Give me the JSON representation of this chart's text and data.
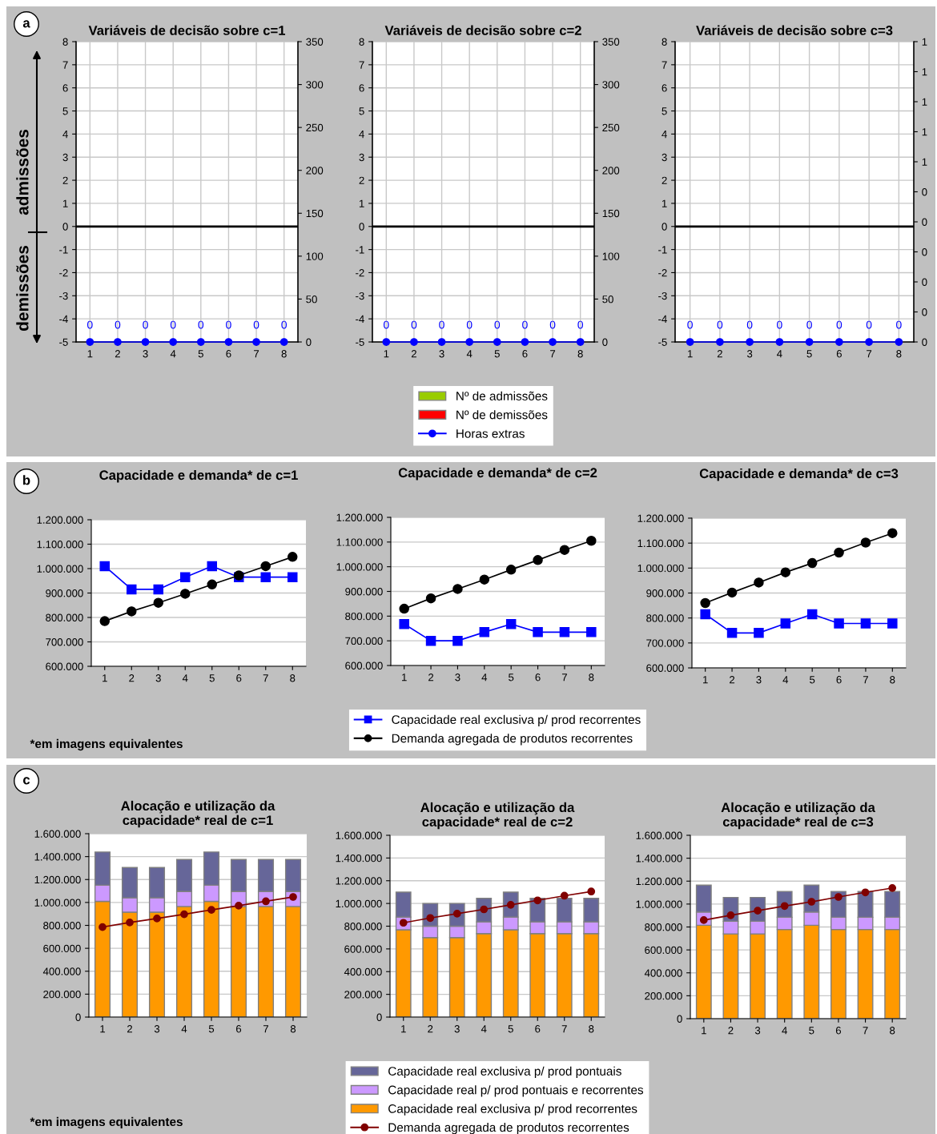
{
  "chart_data": [
    {
      "type": "bar",
      "title": "Variáveis de decisão sobre c=1",
      "categories": [
        "1",
        "2",
        "3",
        "4",
        "5",
        "6",
        "7",
        "8"
      ],
      "grid": true,
      "ylim": [
        -5,
        8
      ],
      "yticks": [
        -5,
        -4,
        -3,
        -2,
        -1,
        0,
        1,
        2,
        3,
        4,
        5,
        6,
        7,
        8
      ],
      "y2lim": [
        0,
        350
      ],
      "y2ticks": [
        0,
        50,
        100,
        150,
        200,
        250,
        300,
        350
      ],
      "ref_lines": [
        {
          "axis": "y",
          "value": 0,
          "color": "#000000"
        }
      ],
      "annotations": [
        "a",
        "admissões",
        "demissões"
      ],
      "series": [
        {
          "type": "bar",
          "color": "#99cc00",
          "values": [
            0,
            0,
            0,
            0,
            0,
            0,
            0,
            0
          ]
        },
        {
          "type": "bar",
          "color": "#ff0000",
          "values": [
            0,
            0,
            0,
            0,
            0,
            0,
            0,
            0
          ]
        },
        {
          "type": "line",
          "axis": "y2",
          "color": "#0000ff",
          "marker": "circle",
          "values": [
            0,
            0,
            0,
            0,
            0,
            0,
            0,
            0
          ],
          "value_labels": [
            "0",
            "0",
            "0",
            "0",
            "0",
            "0",
            "0",
            "0"
          ]
        }
      ]
    },
    {
      "type": "bar",
      "title": "Variáveis de decisão sobre c=2",
      "categories": [
        "1",
        "2",
        "3",
        "4",
        "5",
        "6",
        "7",
        "8"
      ],
      "grid": true,
      "legend": "bottom",
      "ylim": [
        -5,
        8
      ],
      "yticks": [
        -5,
        -4,
        -3,
        -2,
        -1,
        0,
        1,
        2,
        3,
        4,
        5,
        6,
        7,
        8
      ],
      "y2lim": [
        0,
        350
      ],
      "y2ticks": [
        0,
        50,
        100,
        150,
        200,
        250,
        300,
        350
      ],
      "ref_lines": [
        {
          "axis": "y",
          "value": 0,
          "color": "#000000"
        }
      ],
      "series": [
        {
          "type": "bar",
          "name": "Nº de admissões",
          "color": "#99cc00",
          "values": [
            0,
            0,
            0,
            0,
            0,
            0,
            0,
            0
          ]
        },
        {
          "type": "bar",
          "name": "Nº de demissões",
          "color": "#ff0000",
          "values": [
            0,
            0,
            0,
            0,
            0,
            0,
            0,
            0
          ]
        },
        {
          "type": "line",
          "axis": "y2",
          "name": "Horas extras",
          "color": "#0000ff",
          "marker": "circle",
          "values": [
            0,
            0,
            0,
            0,
            0,
            0,
            0,
            0
          ],
          "value_labels": [
            "0",
            "0",
            "0",
            "0",
            "0",
            "0",
            "0",
            "0"
          ]
        }
      ]
    },
    {
      "type": "bar",
      "title": "Variáveis de decisão sobre c=3",
      "categories": [
        "1",
        "2",
        "3",
        "4",
        "5",
        "6",
        "7",
        "8"
      ],
      "grid": true,
      "ylim": [
        -5,
        8
      ],
      "yticks": [
        -5,
        -4,
        -3,
        -2,
        -1,
        0,
        1,
        2,
        3,
        4,
        5,
        6,
        7,
        8
      ],
      "y2lim": [
        0,
        1
      ],
      "y2ticks": [
        0,
        {
          "value": 0.1,
          "label": "0"
        },
        {
          "value": 0.2,
          "label": "0"
        },
        {
          "value": 0.3,
          "label": "0"
        },
        {
          "value": 0.4,
          "label": "0"
        },
        {
          "value": 0.5,
          "label": "0"
        },
        {
          "value": 0.6,
          "label": "1"
        },
        {
          "value": 0.7,
          "label": "1"
        },
        {
          "value": 0.8,
          "label": "1"
        },
        {
          "value": 0.9,
          "label": "1"
        },
        1
      ],
      "ref_lines": [
        {
          "axis": "y",
          "value": 0,
          "color": "#000000"
        }
      ],
      "series": [
        {
          "type": "bar",
          "color": "#99cc00",
          "values": [
            0,
            0,
            0,
            0,
            0,
            0,
            0,
            0
          ]
        },
        {
          "type": "bar",
          "color": "#ff0000",
          "values": [
            0,
            0,
            0,
            0,
            0,
            0,
            0,
            0
          ]
        },
        {
          "type": "line",
          "axis": "y2",
          "color": "#0000ff",
          "marker": "circle",
          "values": [
            0,
            0,
            0,
            0,
            0,
            0,
            0,
            0
          ],
          "value_labels": [
            "0",
            "0",
            "0",
            "0",
            "0",
            "0",
            "0",
            "0"
          ]
        }
      ]
    },
    {
      "type": "line",
      "title": "Capacidade e demanda* de c=1",
      "categories": [
        "1",
        "2",
        "3",
        "4",
        "5",
        "6",
        "7",
        "8"
      ],
      "grid": "y",
      "ylim": [
        600000,
        1200000
      ],
      "yticks": [
        {
          "value": 600000,
          "label": "600.000"
        },
        {
          "value": 700000,
          "label": "700.000"
        },
        {
          "value": 800000,
          "label": "800.000"
        },
        {
          "value": 900000,
          "label": "900.000"
        },
        {
          "value": 1000000,
          "label": "1.000.000"
        },
        {
          "value": 1100000,
          "label": "1.100.000"
        },
        {
          "value": 1200000,
          "label": "1.200.000"
        }
      ],
      "annotations": [
        "b",
        "*em imagens equivalentes"
      ],
      "series": [
        {
          "color": "#0000ff",
          "marker": "square",
          "values": [
            1010000,
            915000,
            915000,
            965000,
            1010000,
            965000,
            965000,
            965000
          ]
        },
        {
          "color": "#000000",
          "marker": "circle",
          "values": [
            785000,
            825000,
            860000,
            897000,
            935000,
            972000,
            1010000,
            1048000
          ]
        }
      ]
    },
    {
      "type": "line",
      "title": "Capacidade e demanda* de c=2",
      "categories": [
        "1",
        "2",
        "3",
        "4",
        "5",
        "6",
        "7",
        "8"
      ],
      "grid": "y",
      "legend": "bottom",
      "ylim": [
        600000,
        1200000
      ],
      "yticks": [
        {
          "value": 600000,
          "label": "600.000"
        },
        {
          "value": 700000,
          "label": "700.000"
        },
        {
          "value": 800000,
          "label": "800.000"
        },
        {
          "value": 900000,
          "label": "900.000"
        },
        {
          "value": 1000000,
          "label": "1.000.000"
        },
        {
          "value": 1100000,
          "label": "1.100.000"
        },
        {
          "value": 1200000,
          "label": "1.200.000"
        }
      ],
      "series": [
        {
          "name": "Capacidade real exclusiva p/ prod recorrentes",
          "color": "#0000ff",
          "marker": "square",
          "values": [
            768000,
            700000,
            700000,
            735000,
            768000,
            735000,
            735000,
            735000
          ]
        },
        {
          "name": "Demanda agregada de produtos recorrentes",
          "color": "#000000",
          "marker": "circle",
          "values": [
            830000,
            872000,
            910000,
            948000,
            988000,
            1027000,
            1068000,
            1105000
          ]
        }
      ]
    },
    {
      "type": "line",
      "title": "Capacidade e demanda* de c=3",
      "categories": [
        "1",
        "2",
        "3",
        "4",
        "5",
        "6",
        "7",
        "8"
      ],
      "grid": "y",
      "ylim": [
        600000,
        1200000
      ],
      "yticks": [
        {
          "value": 600000,
          "label": "600.000"
        },
        {
          "value": 700000,
          "label": "700.000"
        },
        {
          "value": 800000,
          "label": "800.000"
        },
        {
          "value": 900000,
          "label": "900.000"
        },
        {
          "value": 1000000,
          "label": "1.000.000"
        },
        {
          "value": 1100000,
          "label": "1.100.000"
        },
        {
          "value": 1200000,
          "label": "1.200.000"
        }
      ],
      "series": [
        {
          "color": "#0000ff",
          "marker": "square",
          "values": [
            815000,
            740000,
            740000,
            778000,
            815000,
            778000,
            778000,
            778000
          ]
        },
        {
          "color": "#000000",
          "marker": "circle",
          "values": [
            860000,
            902000,
            942000,
            983000,
            1020000,
            1062000,
            1102000,
            1140000
          ]
        }
      ]
    },
    {
      "type": "bar",
      "stacked": true,
      "title": "Alocação e utilização da\ncapacidade* real de c=1",
      "categories": [
        "1",
        "2",
        "3",
        "4",
        "5",
        "6",
        "7",
        "8"
      ],
      "grid": "y",
      "ylim": [
        0,
        1600000
      ],
      "yticks": [
        0,
        {
          "value": 200000,
          "label": "200.000"
        },
        {
          "value": 400000,
          "label": "400.000"
        },
        {
          "value": 600000,
          "label": "600.000"
        },
        {
          "value": 800000,
          "label": "800.000"
        },
        {
          "value": 1000000,
          "label": "1.000.000"
        },
        {
          "value": 1200000,
          "label": "1.200.000"
        },
        {
          "value": 1400000,
          "label": "1.400.000"
        },
        {
          "value": 1600000,
          "label": "1.600.000"
        }
      ],
      "annotations": [
        "c",
        "*em imagens equivalentes"
      ],
      "series": [
        {
          "color": "#ff9900",
          "values": [
            1010000,
            915000,
            915000,
            965000,
            1010000,
            965000,
            965000,
            965000
          ]
        },
        {
          "color": "#cc99ff",
          "values": [
            140000,
            125000,
            125000,
            130000,
            140000,
            130000,
            130000,
            130000
          ]
        },
        {
          "color": "#666699",
          "values": [
            290000,
            265000,
            265000,
            280000,
            290000,
            280000,
            280000,
            280000
          ]
        },
        {
          "type": "line",
          "color": "#800000",
          "marker": "circle",
          "values": [
            785000,
            825000,
            860000,
            897000,
            935000,
            972000,
            1010000,
            1048000
          ]
        }
      ]
    },
    {
      "type": "bar",
      "stacked": true,
      "title": "Alocação e utilização da\ncapacidade* real de c=2",
      "categories": [
        "1",
        "2",
        "3",
        "4",
        "5",
        "6",
        "7",
        "8"
      ],
      "grid": "y",
      "legend": "bottom",
      "ylim": [
        0,
        1600000
      ],
      "yticks": [
        0,
        {
          "value": 200000,
          "label": "200.000"
        },
        {
          "value": 400000,
          "label": "400.000"
        },
        {
          "value": 600000,
          "label": "600.000"
        },
        {
          "value": 800000,
          "label": "800.000"
        },
        {
          "value": 1000000,
          "label": "1.000.000"
        },
        {
          "value": 1200000,
          "label": "1.200.000"
        },
        {
          "value": 1400000,
          "label": "1.400.000"
        },
        {
          "value": 1600000,
          "label": "1.600.000"
        }
      ],
      "series": [
        {
          "name": "Capacidade real exclusiva p/ prod recorrentes",
          "color": "#ff9900",
          "values": [
            768000,
            700000,
            700000,
            735000,
            768000,
            735000,
            735000,
            735000
          ]
        },
        {
          "name": "Capacidade real p/ prod pontuais e recorrentes",
          "color": "#cc99ff",
          "values": [
            112000,
            100000,
            100000,
            103000,
            112000,
            103000,
            103000,
            103000
          ]
        },
        {
          "name": "Capacidade real exclusiva p/ prod pontuais",
          "color": "#666699",
          "values": [
            220000,
            200000,
            200000,
            207000,
            220000,
            207000,
            207000,
            207000
          ]
        },
        {
          "type": "line",
          "name": "Demanda agregada de produtos recorrentes",
          "color": "#800000",
          "marker": "circle",
          "values": [
            830000,
            872000,
            910000,
            948000,
            988000,
            1027000,
            1068000,
            1105000
          ]
        }
      ]
    },
    {
      "type": "bar",
      "stacked": true,
      "title": "Alocação e utilização da\ncapacidade* real de c=3",
      "categories": [
        "1",
        "2",
        "3",
        "4",
        "5",
        "6",
        "7",
        "8"
      ],
      "grid": "y",
      "ylim": [
        0,
        1600000
      ],
      "yticks": [
        0,
        {
          "value": 200000,
          "label": "200.000"
        },
        {
          "value": 400000,
          "label": "400.000"
        },
        {
          "value": 600000,
          "label": "600.000"
        },
        {
          "value": 800000,
          "label": "800.000"
        },
        {
          "value": 1000000,
          "label": "1.000.000"
        },
        {
          "value": 1200000,
          "label": "1.200.000"
        },
        {
          "value": 1400000,
          "label": "1.400.000"
        },
        {
          "value": 1600000,
          "label": "1.600.000"
        }
      ],
      "series": [
        {
          "color": "#ff9900",
          "values": [
            815000,
            740000,
            740000,
            778000,
            815000,
            778000,
            778000,
            778000
          ]
        },
        {
          "color": "#cc99ff",
          "values": [
            115000,
            110000,
            110000,
            107000,
            115000,
            107000,
            107000,
            107000
          ]
        },
        {
          "color": "#666699",
          "values": [
            235000,
            208000,
            208000,
            225000,
            235000,
            225000,
            225000,
            225000
          ]
        },
        {
          "type": "line",
          "color": "#800000",
          "marker": "circle",
          "values": [
            860000,
            902000,
            942000,
            983000,
            1020000,
            1062000,
            1102000,
            1140000
          ]
        }
      ]
    }
  ]
}
